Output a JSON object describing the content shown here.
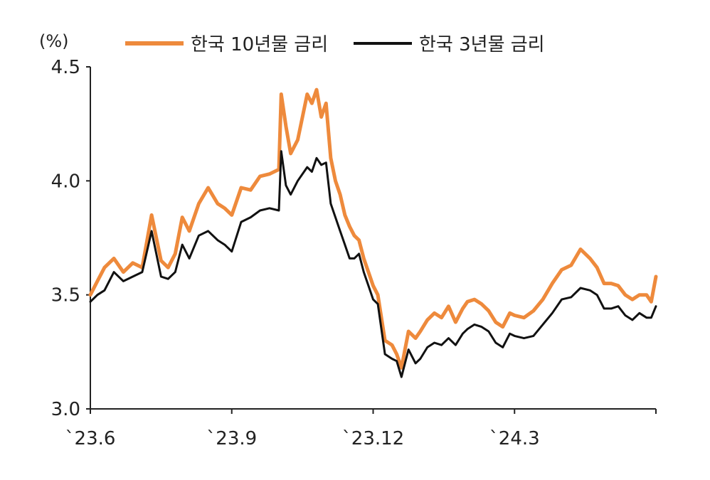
{
  "chart_data": {
    "type": "line",
    "unit": "(%)",
    "ylim": [
      3.0,
      4.5
    ],
    "y_ticks": [
      "3.0",
      "3.5",
      "4.0",
      "4.5"
    ],
    "x_ticks": [
      "`23.6",
      "`23.9",
      "`23.12",
      "`24.3"
    ],
    "xlim": [
      0,
      12
    ],
    "x_tick_positions": [
      0,
      3,
      6,
      9
    ],
    "legend_position": "top",
    "grid": false,
    "series": [
      {
        "name": "한국 10년물 금리",
        "color": "#EE8A3C",
        "x": [
          0,
          0.15,
          0.3,
          0.5,
          0.7,
          0.9,
          1.1,
          1.3,
          1.5,
          1.65,
          1.8,
          1.95,
          2.1,
          2.3,
          2.5,
          2.7,
          2.85,
          3.0,
          3.2,
          3.4,
          3.6,
          3.8,
          4.0,
          4.05,
          4.15,
          4.25,
          4.4,
          4.6,
          4.7,
          4.8,
          4.9,
          5.0,
          5.1,
          5.2,
          5.3,
          5.4,
          5.5,
          5.6,
          5.7,
          5.8,
          5.9,
          6.0,
          6.1,
          6.25,
          6.4,
          6.5,
          6.6,
          6.75,
          6.9,
          7.0,
          7.15,
          7.3,
          7.45,
          7.6,
          7.75,
          7.9,
          8.0,
          8.15,
          8.3,
          8.45,
          8.6,
          8.75,
          8.9,
          9.0,
          9.2,
          9.4,
          9.6,
          9.8,
          10.0,
          10.2,
          10.4,
          10.6,
          10.75,
          10.9,
          11.05,
          11.2,
          11.35,
          11.5,
          11.65,
          11.8,
          11.9,
          12.0
        ],
        "values": [
          3.5,
          3.56,
          3.62,
          3.66,
          3.6,
          3.64,
          3.62,
          3.85,
          3.65,
          3.62,
          3.68,
          3.84,
          3.78,
          3.9,
          3.97,
          3.9,
          3.88,
          3.85,
          3.97,
          3.96,
          4.02,
          4.03,
          4.05,
          4.38,
          4.24,
          4.12,
          4.18,
          4.38,
          4.34,
          4.4,
          4.28,
          4.34,
          4.1,
          4.0,
          3.94,
          3.85,
          3.8,
          3.76,
          3.74,
          3.66,
          3.6,
          3.54,
          3.5,
          3.3,
          3.28,
          3.24,
          3.18,
          3.34,
          3.31,
          3.34,
          3.39,
          3.42,
          3.4,
          3.45,
          3.38,
          3.44,
          3.47,
          3.48,
          3.46,
          3.43,
          3.38,
          3.36,
          3.42,
          3.41,
          3.4,
          3.43,
          3.48,
          3.55,
          3.61,
          3.63,
          3.7,
          3.66,
          3.62,
          3.55,
          3.55,
          3.54,
          3.5,
          3.48,
          3.5,
          3.5,
          3.47,
          3.58
        ]
      },
      {
        "name": "한국 3년물 금리",
        "color": "#111111",
        "x": [
          0,
          0.15,
          0.3,
          0.5,
          0.7,
          0.9,
          1.1,
          1.3,
          1.5,
          1.65,
          1.8,
          1.95,
          2.1,
          2.3,
          2.5,
          2.7,
          2.85,
          3.0,
          3.2,
          3.4,
          3.6,
          3.8,
          4.0,
          4.05,
          4.15,
          4.25,
          4.4,
          4.6,
          4.7,
          4.8,
          4.9,
          5.0,
          5.1,
          5.2,
          5.3,
          5.4,
          5.5,
          5.6,
          5.7,
          5.8,
          5.9,
          6.0,
          6.1,
          6.25,
          6.4,
          6.5,
          6.6,
          6.75,
          6.9,
          7.0,
          7.15,
          7.3,
          7.45,
          7.6,
          7.75,
          7.9,
          8.0,
          8.15,
          8.3,
          8.45,
          8.6,
          8.75,
          8.9,
          9.0,
          9.2,
          9.4,
          9.6,
          9.8,
          10.0,
          10.2,
          10.4,
          10.6,
          10.75,
          10.9,
          11.05,
          11.2,
          11.35,
          11.5,
          11.65,
          11.8,
          11.9,
          12.0
        ],
        "values": [
          3.47,
          3.5,
          3.52,
          3.6,
          3.56,
          3.58,
          3.6,
          3.78,
          3.58,
          3.57,
          3.6,
          3.72,
          3.66,
          3.76,
          3.78,
          3.74,
          3.72,
          3.69,
          3.82,
          3.84,
          3.87,
          3.88,
          3.87,
          4.13,
          3.98,
          3.94,
          4.0,
          4.06,
          4.04,
          4.1,
          4.07,
          4.08,
          3.9,
          3.84,
          3.78,
          3.72,
          3.66,
          3.66,
          3.68,
          3.6,
          3.54,
          3.48,
          3.46,
          3.24,
          3.22,
          3.21,
          3.14,
          3.26,
          3.2,
          3.22,
          3.27,
          3.29,
          3.28,
          3.31,
          3.28,
          3.33,
          3.35,
          3.37,
          3.36,
          3.34,
          3.29,
          3.27,
          3.33,
          3.32,
          3.31,
          3.32,
          3.37,
          3.42,
          3.48,
          3.49,
          3.53,
          3.52,
          3.5,
          3.44,
          3.44,
          3.45,
          3.41,
          3.39,
          3.42,
          3.4,
          3.4,
          3.45
        ]
      }
    ]
  }
}
